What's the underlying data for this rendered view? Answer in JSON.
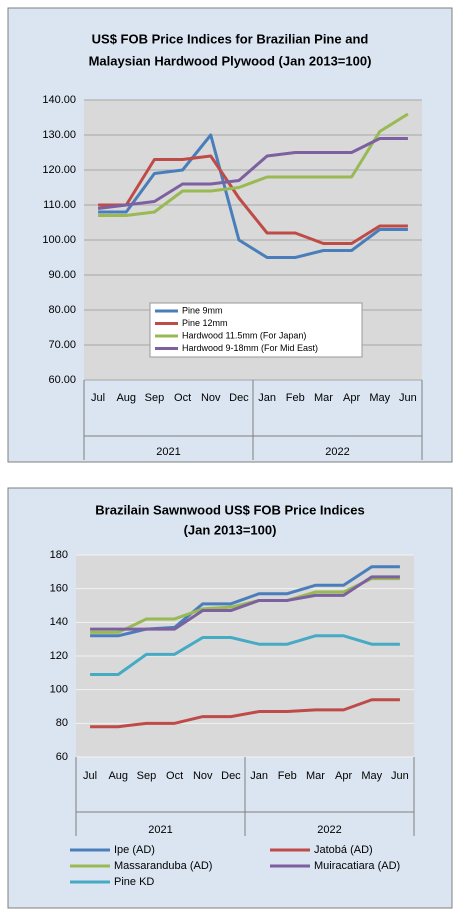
{
  "chart_data": [
    {
      "type": "line",
      "title": "US$ FOB Price Indices for Brazilian  Pine and",
      "subtitle": "Malaysian Hardwood Plywood (Jan 2013=100)",
      "categories": [
        "Jul",
        "Aug",
        "Sep",
        "Oct",
        "Nov",
        "Dec",
        "Jan",
        "Feb",
        "Mar",
        "Apr",
        "May",
        "Jun"
      ],
      "x_groups": [
        "2021",
        "2022"
      ],
      "ylim": [
        60,
        140
      ],
      "yticks": [
        {
          "value": 60,
          "label": "60.00"
        },
        {
          "value": 70,
          "label": "70.00"
        },
        {
          "value": 80,
          "label": "80.00"
        },
        {
          "value": 90,
          "label": "90.00"
        },
        {
          "value": 100,
          "label": "100.00"
        },
        {
          "value": 110,
          "label": "110.00"
        },
        {
          "value": 120,
          "label": "120.00"
        },
        {
          "value": 130,
          "label": "130.00"
        },
        {
          "value": 140,
          "label": "140.00"
        }
      ],
      "grid": true,
      "legend": "center",
      "series": [
        {
          "name": "Pine 9mm",
          "color": "#4a7ebb",
          "values": [
            108,
            108,
            119,
            120,
            130,
            100,
            95,
            95,
            97,
            97,
            103,
            103
          ]
        },
        {
          "name": "Pine 12mm",
          "color": "#be4b48",
          "values": [
            110,
            110,
            123,
            123,
            124,
            112,
            102,
            102,
            99,
            99,
            104,
            104
          ]
        },
        {
          "name": "Hardwood 11.5mm (For Japan)",
          "color": "#98b954",
          "values": [
            107,
            107,
            108,
            114,
            114,
            115,
            118,
            118,
            118,
            118,
            131,
            136
          ]
        },
        {
          "name": "Hardwood 9-18mm (For Mid East)",
          "color": "#7d60a0",
          "values": [
            109,
            110,
            111,
            116,
            116,
            117,
            124,
            125,
            125,
            125,
            129,
            129
          ]
        }
      ]
    },
    {
      "type": "line",
      "title": "Brazilain Sawnwood US$ FOB Price Indices",
      "subtitle": "(Jan 2013=100)",
      "categories": [
        "Jul",
        "Aug",
        "Sep",
        "Oct",
        "Nov",
        "Dec",
        "Jan",
        "Feb",
        "Mar",
        "Apr",
        "May",
        "Jun"
      ],
      "x_groups": [
        "2021",
        "2022"
      ],
      "ylim": [
        60,
        180
      ],
      "yticks": [
        60,
        80,
        100,
        120,
        140,
        160,
        180
      ],
      "grid": true,
      "legend": "bottom",
      "series": [
        {
          "name": "Ipe (AD)",
          "color": "#4a7ebb",
          "values": [
            132,
            132,
            136,
            137,
            151,
            151,
            157,
            157,
            162,
            162,
            173,
            173
          ]
        },
        {
          "name": "Jatobá (AD)",
          "color": "#be4b48",
          "values": [
            78,
            78,
            80,
            80,
            84,
            84,
            87,
            87,
            88,
            88,
            94,
            94
          ]
        },
        {
          "name": "Massaranduba (AD)",
          "color": "#98b954",
          "values": [
            134,
            134,
            142,
            142,
            148,
            149,
            153,
            153,
            158,
            158,
            166,
            166
          ]
        },
        {
          "name": "Muiracatiara (AD)",
          "color": "#7d60a0",
          "values": [
            136,
            136,
            136,
            136,
            147,
            147,
            153,
            153,
            156,
            156,
            167,
            167
          ]
        },
        {
          "name": "Pine KD",
          "color": "#46aac5",
          "values": [
            109,
            109,
            121,
            121,
            131,
            131,
            127,
            127,
            132,
            132,
            127,
            127
          ]
        }
      ]
    }
  ]
}
